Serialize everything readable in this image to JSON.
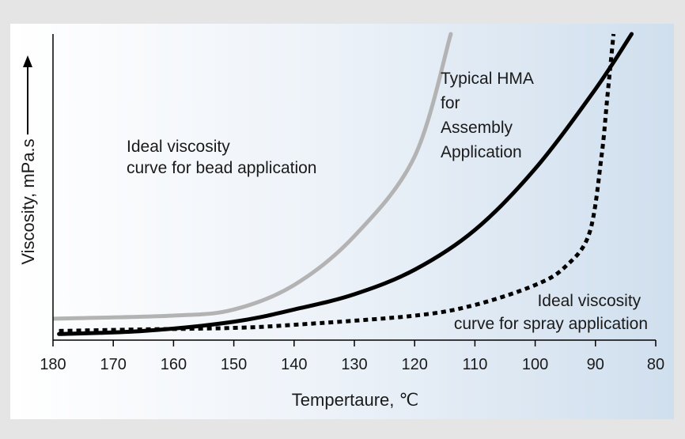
{
  "chart_data": {
    "type": "line",
    "xlabel": "Tempertaure, ℃",
    "ylabel": "Viscosity, mPa.s",
    "x_ticks": [
      "180",
      "170",
      "160",
      "150",
      "140",
      "130",
      "120",
      "110",
      "100",
      "90",
      "80"
    ],
    "xlim": [
      180,
      80
    ],
    "x_reversed": true,
    "ylim": [
      0,
      100
    ],
    "y_axis_numbered": false,
    "grid": false,
    "series": [
      {
        "label": "Ideal viscosity curve for bead application",
        "color": "#b3b3b3",
        "style": "solid",
        "points": [
          [
            180,
            7
          ],
          [
            160,
            8
          ],
          [
            150,
            10
          ],
          [
            140,
            18
          ],
          [
            130,
            34
          ],
          [
            120,
            60
          ],
          [
            114,
            100
          ]
        ]
      },
      {
        "label": "Typical HMA for Assembly Application",
        "color": "#000000",
        "style": "solid",
        "points": [
          [
            179,
            2
          ],
          [
            165,
            3
          ],
          [
            150,
            6
          ],
          [
            140,
            10
          ],
          [
            130,
            15
          ],
          [
            120,
            23
          ],
          [
            110,
            36
          ],
          [
            100,
            56
          ],
          [
            90,
            82
          ],
          [
            84,
            100
          ]
        ]
      },
      {
        "label": "Ideal viscosity curve for spray application",
        "color": "#000000",
        "style": "dotted",
        "points": [
          [
            179,
            3
          ],
          [
            165,
            3.5
          ],
          [
            150,
            4
          ],
          [
            140,
            5
          ],
          [
            120,
            8
          ],
          [
            110,
            11.5
          ],
          [
            100,
            18
          ],
          [
            95,
            24
          ],
          [
            91,
            35
          ],
          [
            89,
            60
          ],
          [
            88,
            80
          ],
          [
            87,
            100
          ]
        ]
      }
    ],
    "annotations": [
      {
        "lines": [
          "Ideal viscosity",
          "curve for bead application"
        ]
      },
      {
        "lines": [
          "Typical HMA",
          "for",
          "Assembly",
          "Application"
        ]
      },
      {
        "lines": [
          "Ideal viscosity",
          "curve for spray application"
        ]
      }
    ]
  }
}
